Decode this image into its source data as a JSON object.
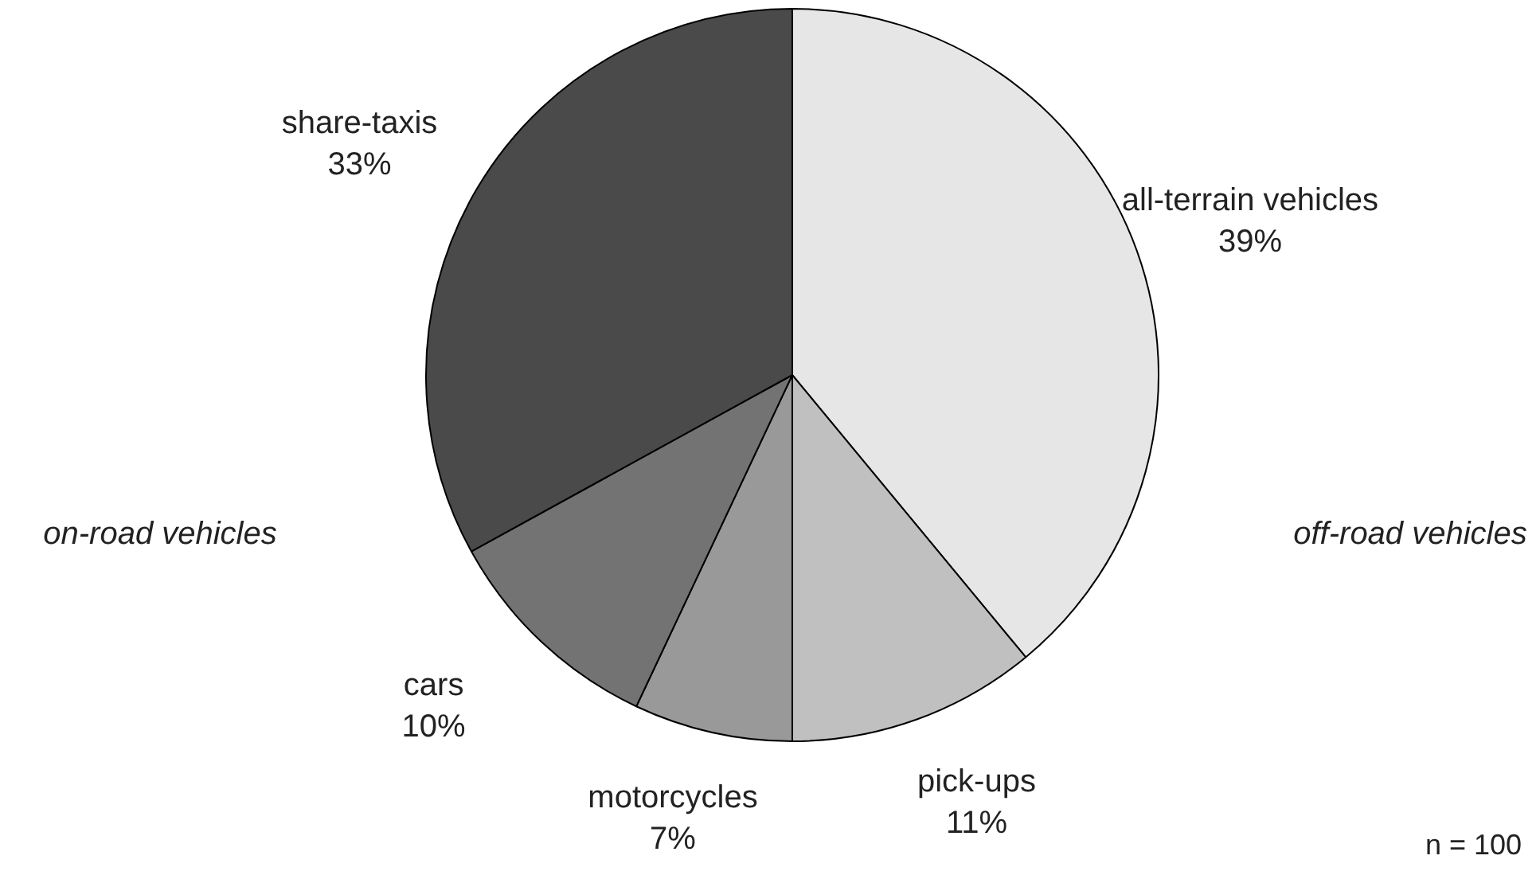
{
  "chart_data": {
    "type": "pie",
    "categories": [
      "all-terrain vehicles",
      "pick-ups",
      "motorcycles",
      "cars",
      "share-taxis"
    ],
    "values": [
      39,
      11,
      7,
      10,
      33
    ],
    "colors": [
      "#e6e6e6",
      "#c0c0c0",
      "#999999",
      "#737373",
      "#4a4a4a"
    ],
    "value_labels": [
      "39%",
      "11%",
      "7%",
      "10%",
      "33%"
    ],
    "annotations": [
      "off-road vehicles",
      "on-road vehicles",
      "n =  100"
    ]
  }
}
